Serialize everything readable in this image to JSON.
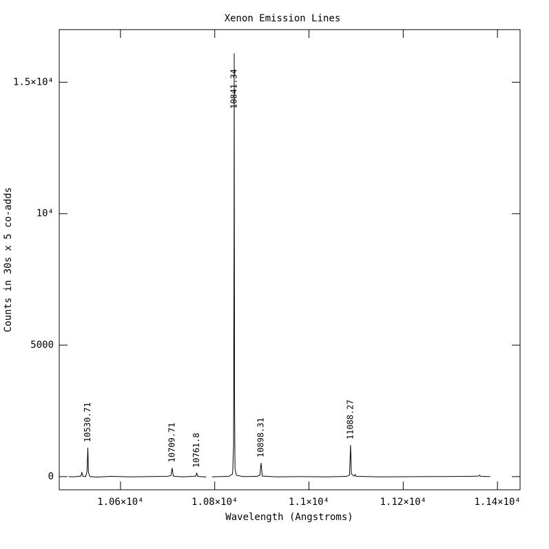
{
  "chart_data": {
    "type": "line",
    "title": "Xenon Emission Lines",
    "x_label": "Wavelength (Angstroms)",
    "y_label": "Counts in 30s x 5 co-adds",
    "color": "#000000",
    "xlim": [
      10470,
      11448
    ],
    "ylim": [
      -500,
      17000
    ],
    "xticks": [
      {
        "value": 10600,
        "label": "1.06×10⁴"
      },
      {
        "value": 10800,
        "label": "1.08×10⁴"
      },
      {
        "value": 11000,
        "label": "1.1×10⁴"
      },
      {
        "value": 11200,
        "label": "1.12×10⁴"
      },
      {
        "value": 11400,
        "label": "1.14×10⁴"
      }
    ],
    "yticks": [
      0,
      5000,
      {
        "value": 10000,
        "label": "10⁴"
      },
      {
        "value": 15000,
        "label": "1.5×10⁴"
      }
    ],
    "x": [
      10490,
      10500,
      10510,
      10516,
      10518,
      10520,
      10526,
      10529,
      10530.71,
      10532,
      10535,
      10550,
      10580,
      10620,
      10660,
      10700,
      10707,
      10709.71,
      10712,
      10730,
      10755,
      10760,
      10761.8,
      10764,
      10782,
      10788,
      10794,
      10810,
      10830,
      10838,
      10840,
      10841,
      10841.34,
      10842,
      10843,
      10846,
      10860,
      10890,
      10896,
      10898.31,
      10901,
      10930,
      10980,
      11040,
      11080,
      11086,
      11088.27,
      11090,
      11096,
      11098,
      11100,
      11150,
      11250,
      11340,
      11360,
      11362,
      11364,
      11385
    ],
    "values": [
      0,
      -10,
      10,
      20,
      170,
      20,
      0,
      200,
      1100,
      150,
      0,
      -20,
      10,
      -10,
      0,
      10,
      40,
      330,
      20,
      -10,
      10,
      20,
      130,
      10,
      -20,
      null,
      -10,
      0,
      10,
      100,
      1200,
      9200,
      16100,
      3000,
      300,
      50,
      0,
      10,
      60,
      520,
      20,
      -10,
      0,
      -10,
      10,
      60,
      1200,
      100,
      20,
      80,
      10,
      -10,
      0,
      10,
      20,
      60,
      10,
      0
    ],
    "annotations": [
      {
        "text": "10530.71",
        "x": 10530.71,
        "y": 1100
      },
      {
        "text": "10709.71",
        "x": 10709.71,
        "y": 330
      },
      {
        "text": "10761.8",
        "x": 10761.8,
        "y": 130
      },
      {
        "text": "10841.34",
        "x": 10841.34,
        "y": 16100
      },
      {
        "text": "10898.31",
        "x": 10898.31,
        "y": 520
      },
      {
        "text": "11088.27",
        "x": 11088.27,
        "y": 1200
      }
    ]
  }
}
